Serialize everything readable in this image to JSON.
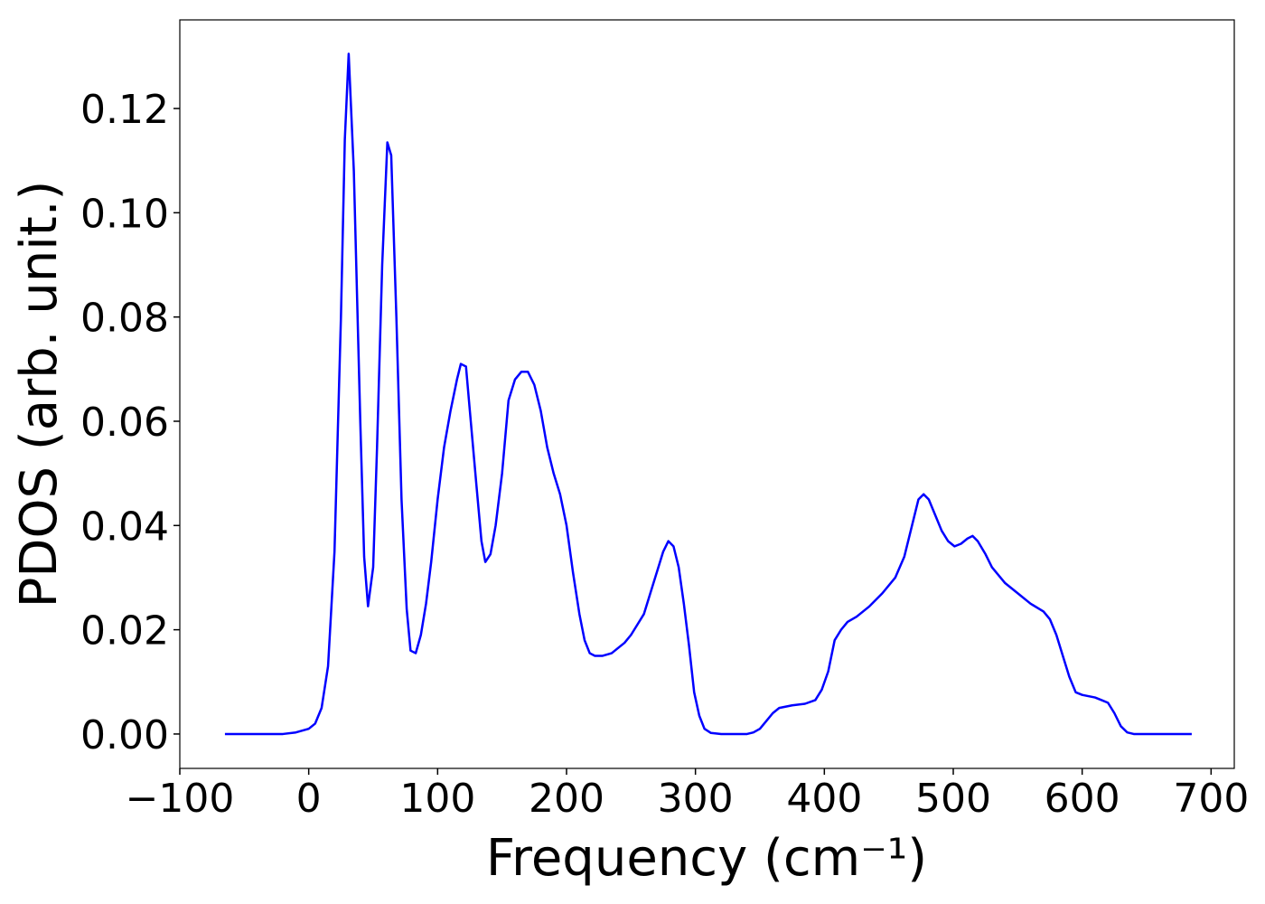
{
  "chart_data": {
    "type": "line",
    "xlabel": "Frequency (cm⁻¹)",
    "ylabel": "PDOS (arb. unit.)",
    "xlim": [
      -100,
      718
    ],
    "ylim": [
      -0.0066,
      0.137
    ],
    "xticks": [
      {
        "value": -100,
        "label": "−100"
      },
      0,
      100,
      200,
      300,
      400,
      500,
      600,
      700
    ],
    "yticks": [
      {
        "value": 0,
        "label": "0.00"
      },
      {
        "value": 0.02,
        "label": "0.02"
      },
      {
        "value": 0.04,
        "label": "0.04"
      },
      {
        "value": 0.06,
        "label": "0.06"
      },
      {
        "value": 0.08,
        "label": "0.08"
      },
      {
        "value": 0.1,
        "label": "0.10"
      },
      {
        "value": 0.12,
        "label": "0.12"
      }
    ],
    "x": [
      -65,
      -20,
      -10,
      0,
      5,
      10,
      15,
      20,
      25,
      28,
      31,
      35,
      40,
      43,
      46,
      50,
      53,
      57,
      61,
      64,
      68,
      72,
      76,
      79,
      83,
      87,
      91,
      95,
      100,
      105,
      110,
      115,
      118,
      122,
      125,
      130,
      134,
      137,
      141,
      145,
      150,
      155,
      160,
      165,
      170,
      175,
      180,
      185,
      190,
      195,
      200,
      205,
      210,
      214,
      218,
      222,
      228,
      235,
      240,
      245,
      250,
      255,
      260,
      265,
      270,
      275,
      279,
      283,
      287,
      291,
      295,
      299,
      303,
      307,
      312,
      320,
      340,
      345,
      350,
      355,
      360,
      365,
      375,
      385,
      393,
      398,
      403,
      408,
      413,
      418,
      425,
      435,
      445,
      455,
      462,
      468,
      473,
      477,
      481,
      486,
      491,
      496,
      501,
      506,
      511,
      515,
      519,
      525,
      530,
      540,
      550,
      560,
      570,
      575,
      580,
      585,
      590,
      595,
      600,
      610,
      615,
      620,
      625,
      630,
      635,
      640,
      685
    ],
    "series": [
      {
        "color": "#0000ff",
        "values": [
          0,
          0,
          0.0003,
          0.001,
          0.002,
          0.005,
          0.013,
          0.035,
          0.08,
          0.114,
          0.1305,
          0.108,
          0.06,
          0.034,
          0.0245,
          0.032,
          0.055,
          0.09,
          0.1135,
          0.111,
          0.08,
          0.045,
          0.024,
          0.016,
          0.0155,
          0.019,
          0.025,
          0.033,
          0.045,
          0.055,
          0.062,
          0.068,
          0.071,
          0.0705,
          0.062,
          0.048,
          0.037,
          0.033,
          0.0345,
          0.04,
          0.05,
          0.064,
          0.068,
          0.0695,
          0.0695,
          0.067,
          0.062,
          0.055,
          0.05,
          0.046,
          0.04,
          0.031,
          0.023,
          0.018,
          0.0155,
          0.015,
          0.015,
          0.0155,
          0.0165,
          0.0175,
          0.019,
          0.021,
          0.023,
          0.027,
          0.031,
          0.035,
          0.037,
          0.036,
          0.032,
          0.025,
          0.017,
          0.008,
          0.0035,
          0.001,
          0.0002,
          0,
          0,
          0.0003,
          0.001,
          0.0025,
          0.004,
          0.005,
          0.0055,
          0.0058,
          0.0065,
          0.0085,
          0.012,
          0.018,
          0.02,
          0.0215,
          0.0225,
          0.0245,
          0.027,
          0.03,
          0.034,
          0.04,
          0.045,
          0.046,
          0.045,
          0.042,
          0.039,
          0.037,
          0.036,
          0.0365,
          0.0375,
          0.038,
          0.037,
          0.0345,
          0.032,
          0.029,
          0.027,
          0.025,
          0.0235,
          0.022,
          0.019,
          0.015,
          0.011,
          0.008,
          0.0075,
          0.007,
          0.0065,
          0.006,
          0.004,
          0.0015,
          0.0003,
          0,
          0
        ]
      }
    ]
  }
}
